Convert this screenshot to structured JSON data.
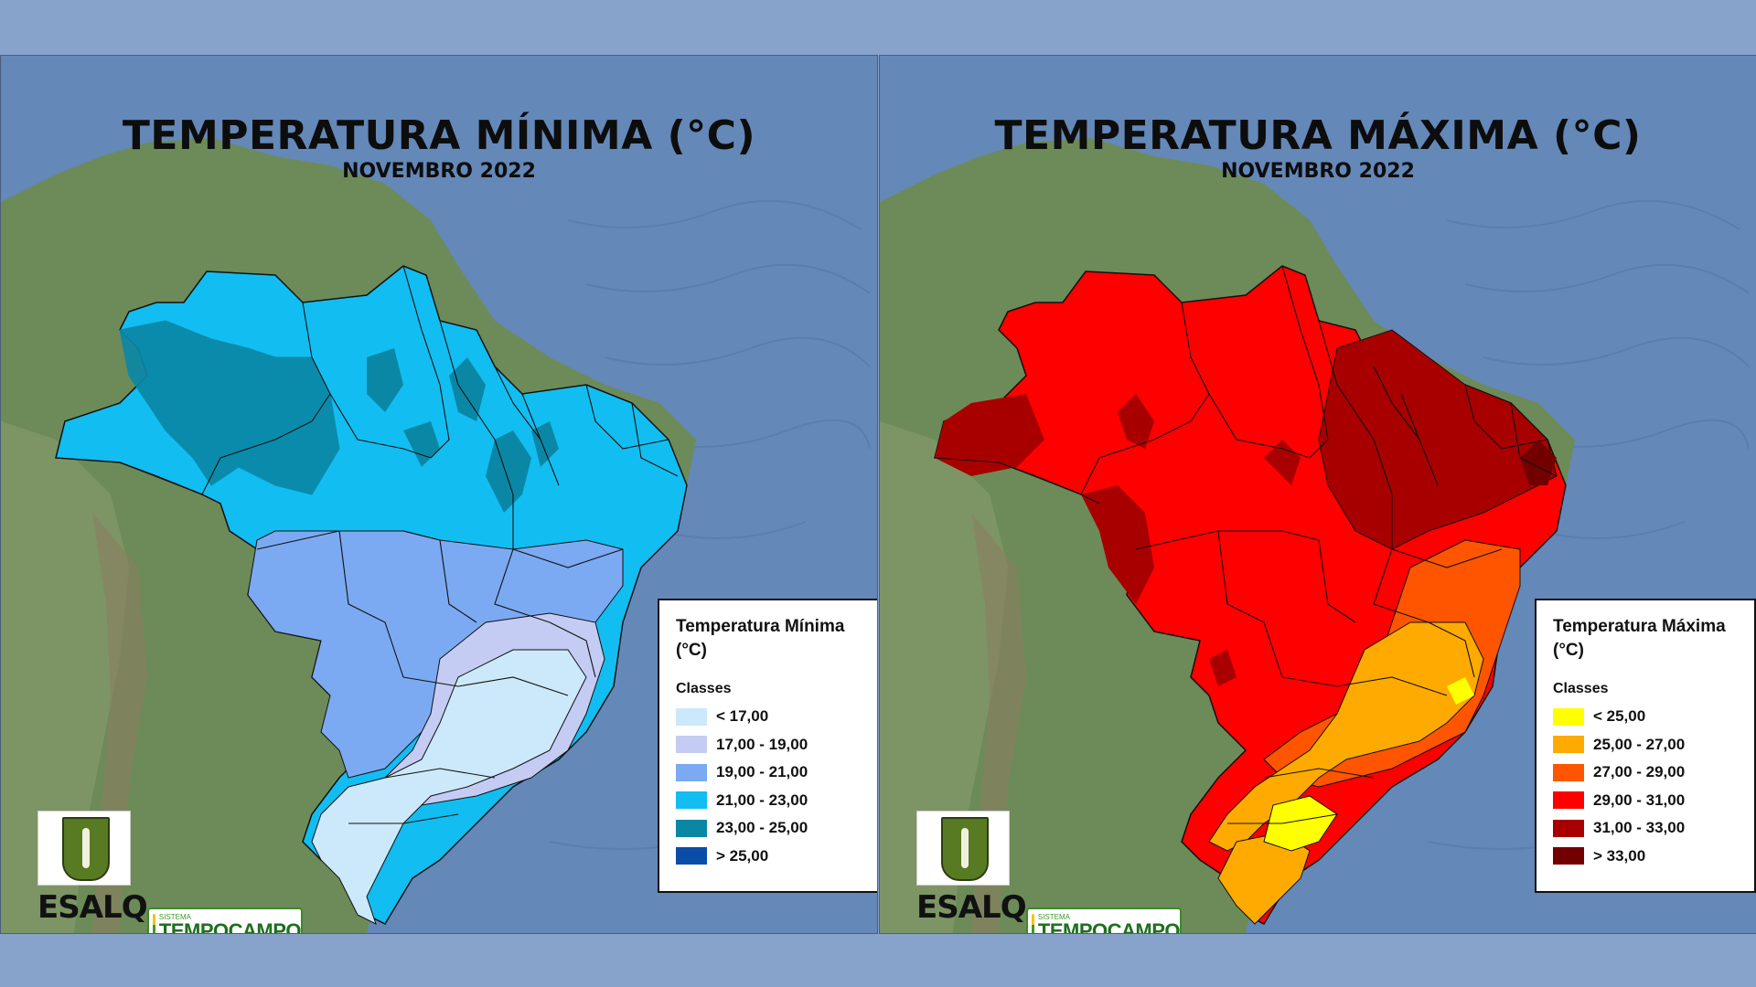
{
  "panels": {
    "min": {
      "title": "TEMPERATURA MÍNIMA (°C)",
      "subtitle": "NOVEMBRO 2022",
      "legend": {
        "title": "Temperatura Mínima (°C)",
        "classes_label": "Classes",
        "items": [
          {
            "label": "< 17,00",
            "color": "#cbe9fa"
          },
          {
            "label": "17,00 - 19,00",
            "color": "#c4ccf4"
          },
          {
            "label": "19,00 - 21,00",
            "color": "#7baaf2"
          },
          {
            "label": "21,00 - 23,00",
            "color": "#12bdf1"
          },
          {
            "label": "23,00 - 25,00",
            "color": "#0b87a6"
          },
          {
            "label": "> 25,00",
            "color": "#0a4da8"
          }
        ]
      }
    },
    "max": {
      "title": "TEMPERATURA MÁXIMA (°C)",
      "subtitle": "NOVEMBRO 2022",
      "legend": {
        "title": "Temperatura Máxima (°C)",
        "classes_label": "Classes",
        "items": [
          {
            "label": "< 25,00",
            "color": "#ffff00"
          },
          {
            "label": "25,00 - 27,00",
            "color": "#ffaa00"
          },
          {
            "label": "27,00 - 29,00",
            "color": "#ff5500"
          },
          {
            "label": "29,00 - 31,00",
            "color": "#ff0000"
          },
          {
            "label": "31,00 - 33,00",
            "color": "#a80000"
          },
          {
            "label": "> 33,00",
            "color": "#730000"
          }
        ]
      }
    }
  },
  "logos": {
    "esalq": "ESALQ",
    "tempocampo_small": "SISTEMA",
    "tempocampo_big": "TEMPOCAMPO"
  },
  "colors": {
    "ocean": "#5f82b3",
    "land": "#6f8f5c",
    "border": "#1a1a1a"
  }
}
